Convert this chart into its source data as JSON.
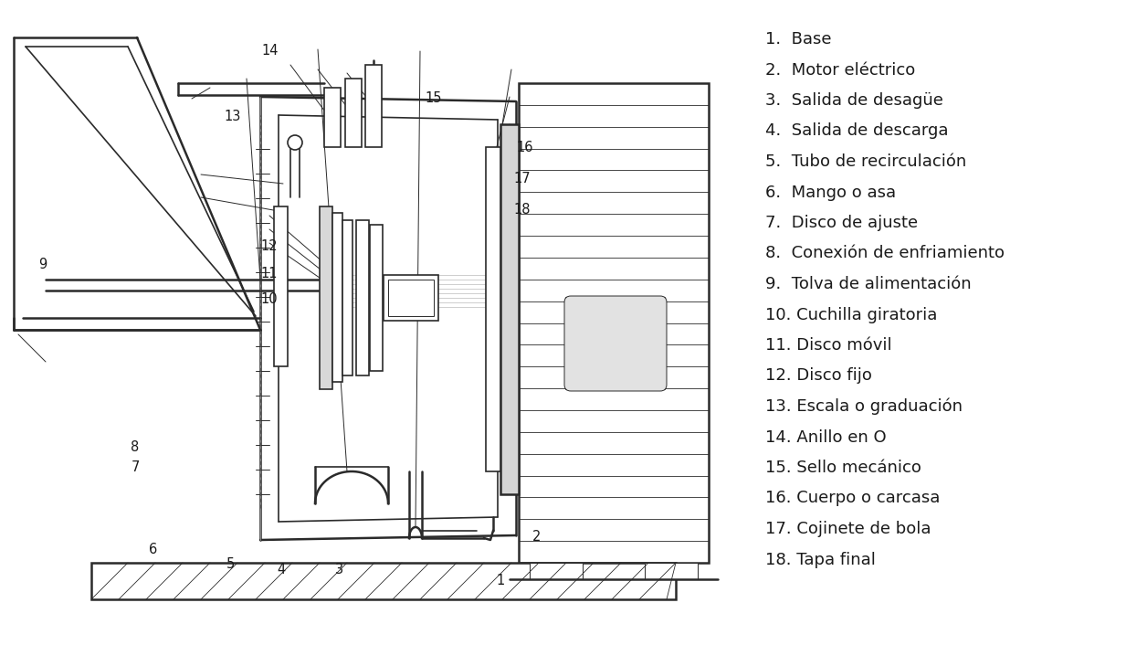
{
  "bg_color": "#ffffff",
  "line_color": "#2a2a2a",
  "text_color": "#1a1a1a",
  "font_size_legend": 13,
  "font_size_label": 10,
  "legend_items": [
    "1.  Base",
    "2.  Motor eléctrico",
    "3.  Salida de desagüe",
    "4.  Salida de descarga",
    "5.  Tubo de recirculación",
    "6.  Mango o asa",
    "7.  Disco de ajuste",
    "8.  Conexión de enfriamiento",
    "9.  Tolva de alimentación",
    "10. Cuchilla giratoria",
    "11. Disco móvil",
    "12. Disco fijo",
    "13. Escala o graduación",
    "14. Anillo en O",
    "15. Sello mecánico",
    "16. Cuerpo o carcasa",
    "17. Cojinete de bola",
    "18. Tapa final"
  ]
}
